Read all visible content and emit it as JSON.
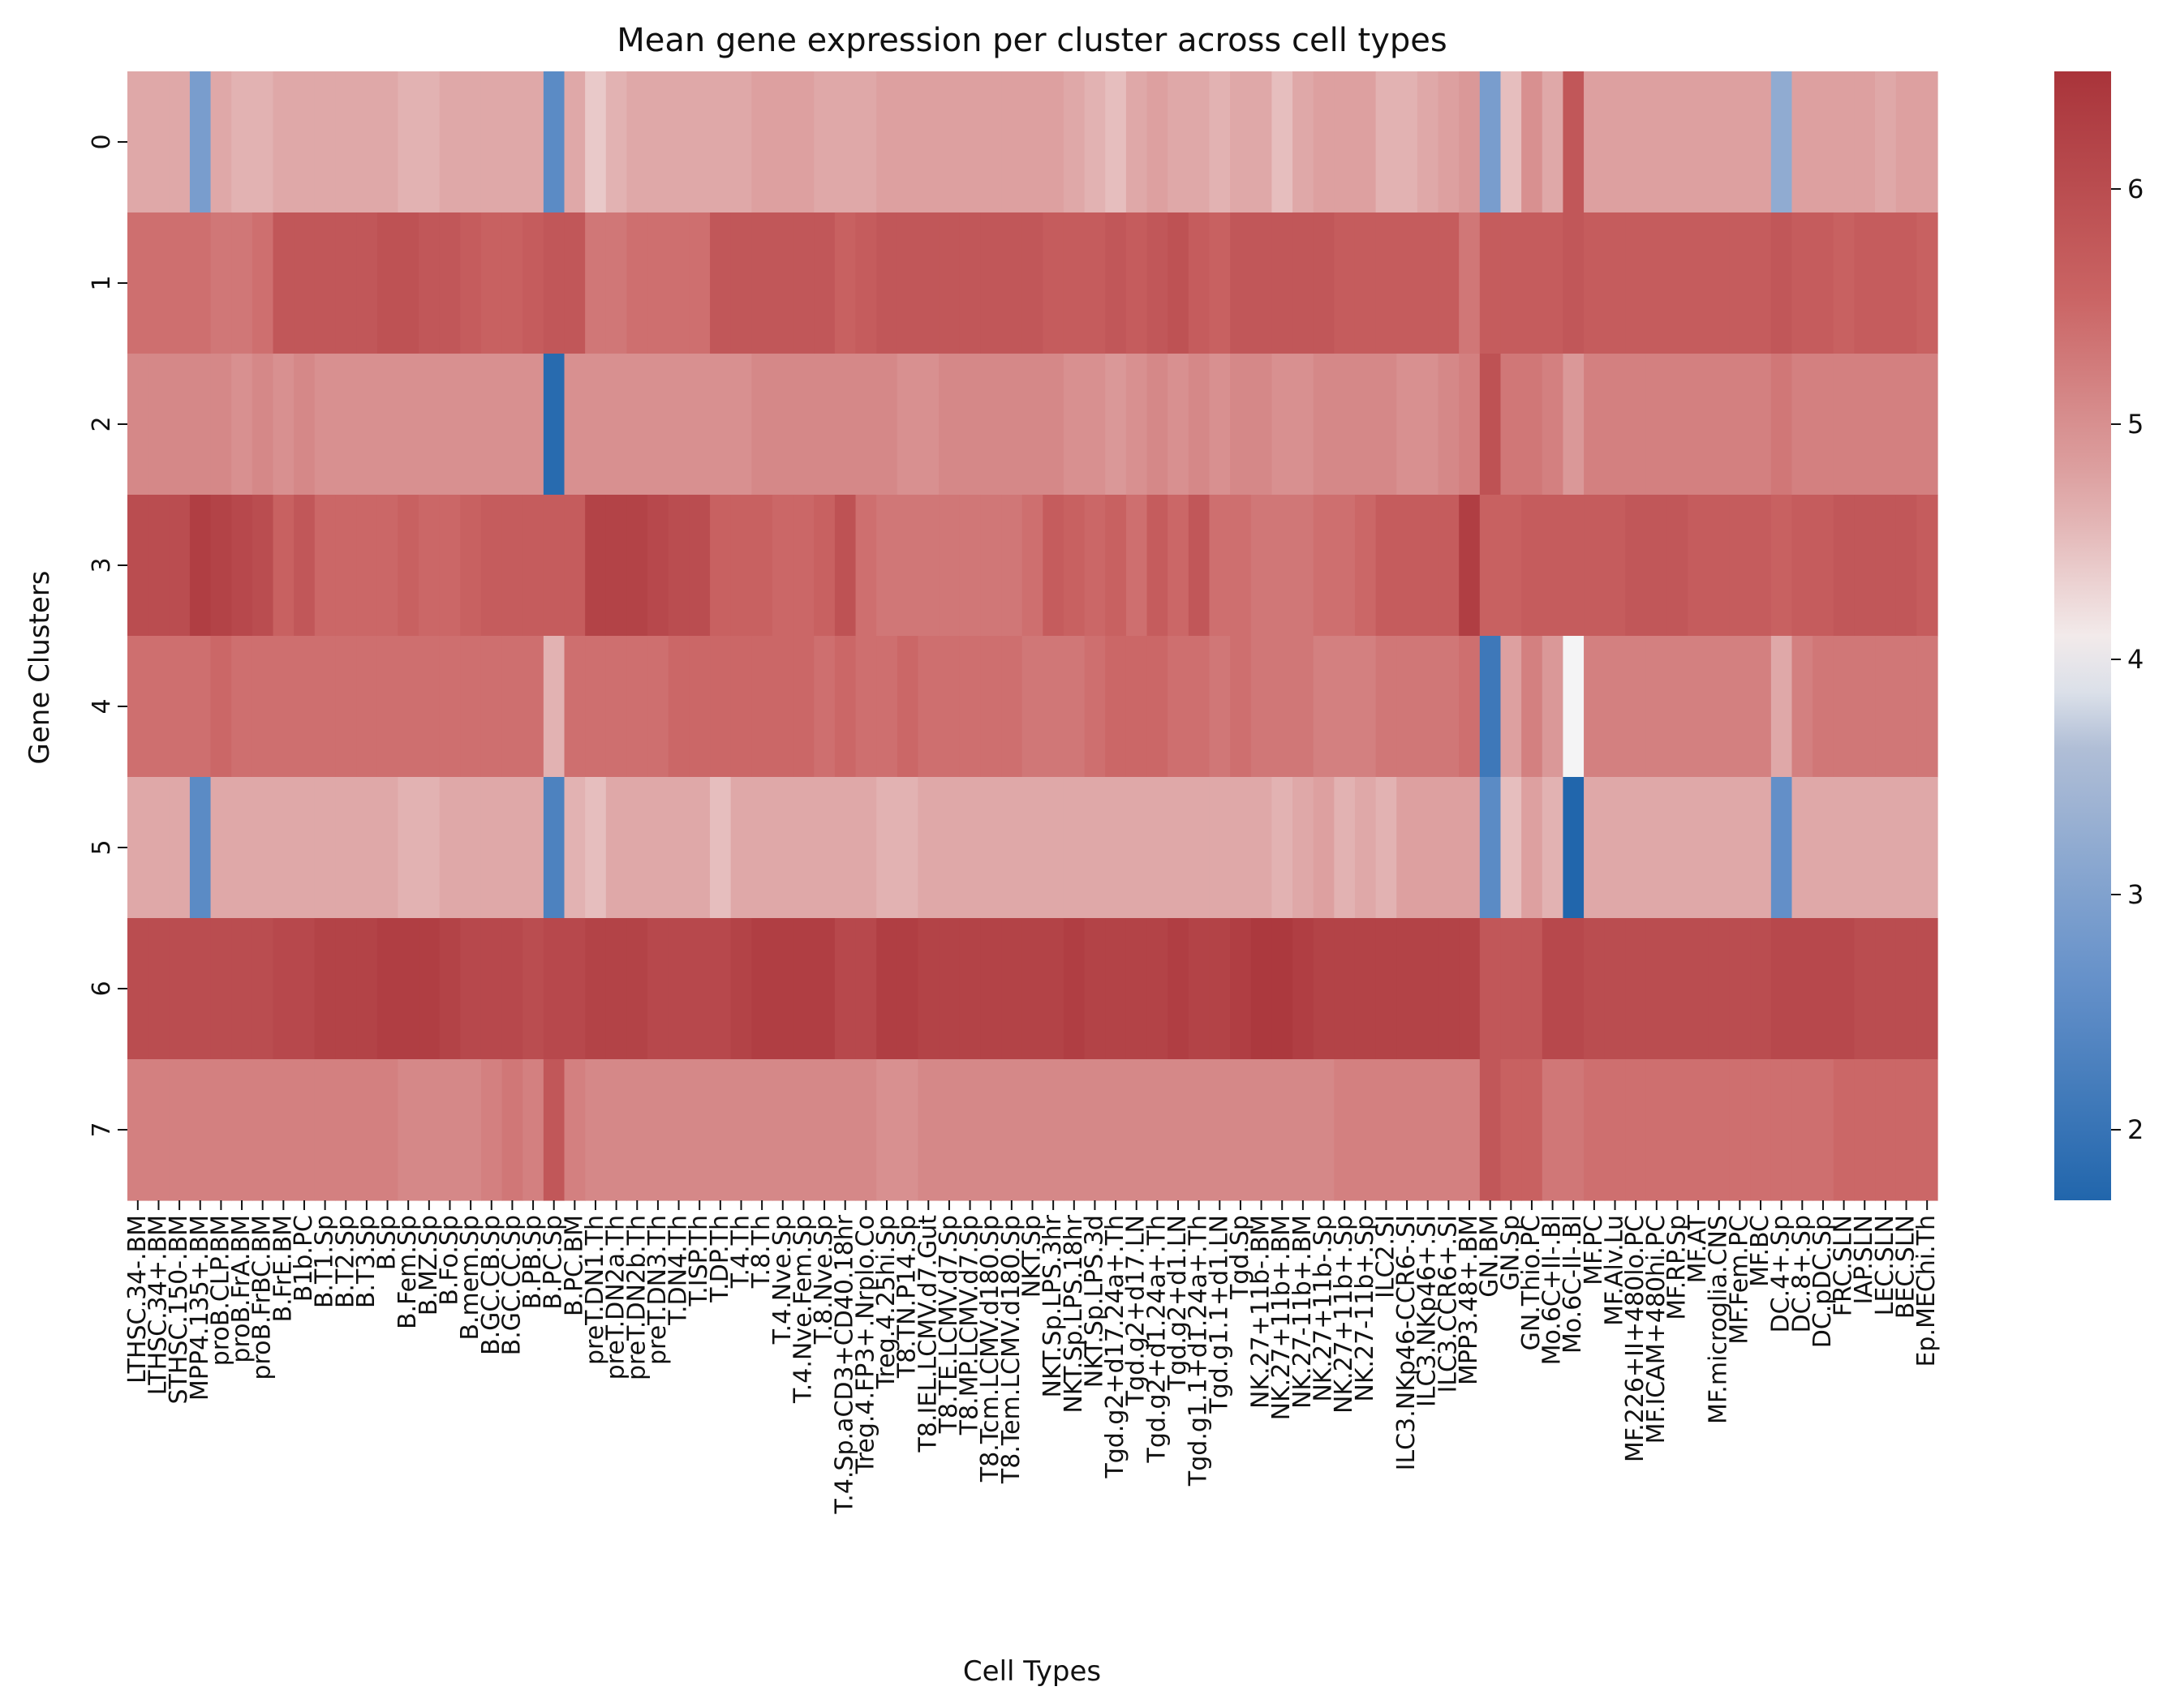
{
  "chart_data": {
    "type": "heatmap",
    "title": "Mean gene expression per cluster across cell types",
    "xlabel": "Cell Types",
    "ylabel": "Gene Clusters",
    "colormap": "vlag",
    "colorbar": {
      "range": [
        1.7,
        6.5
      ],
      "ticks": [
        2,
        3,
        4,
        5,
        6
      ]
    },
    "rows": [
      "0",
      "1",
      "2",
      "3",
      "4",
      "5",
      "6",
      "7"
    ],
    "columns": [
      "LTHSC.34-.BM",
      "LTHSC.34+.BM",
      "STHSC.150-.BM",
      "MPP4.135+.BM",
      "proB.CLP.BM",
      "proB.FrA.BM",
      "proB.FrBC.BM",
      "B.FrE.BM",
      "B1b.PC",
      "B.T1.Sp",
      "B.T2.Sp",
      "B.T3.Sp",
      "B.Sp",
      "B.Fem.Sp",
      "B.MZ.Sp",
      "B.Fo.Sp",
      "B.mem.Sp",
      "B.GC.CB.Sp",
      "B.GC.CC.Sp",
      "B.PB.Sp",
      "B.PC.Sp",
      "B.PC.BM",
      "preT.DN1.Th",
      "preT.DN2a.Th",
      "preT.DN2b.Th",
      "preT.DN3.Th",
      "T.DN4.Th",
      "T.ISP.Th",
      "T.DP.Th",
      "T.4.Th",
      "T.8.Th",
      "T.4.Nve.Sp",
      "T.4.Nve.Fem.Sp",
      "T.8.Nve.Sp",
      "T.4.Sp.aCD3+CD40.18hr",
      "Treg.4.FP3+.Nrplo.Co",
      "Treg.4.25hi.Sp",
      "T8.TN.P14.Sp",
      "T8.IEL.LCMV.d7.Gut",
      "T8.TE.LCMV.d7.Sp",
      "T8.MP.LCMV.d7.Sp",
      "T8.Tcm.LCMV.d180.Sp",
      "T8.Tem.LCMV.d180.Sp",
      "NKT.Sp",
      "NKT.Sp.LPS.3hr",
      "NKT.Sp.LPS.18hr",
      "NKT.Sp.LPS.3d",
      "Tgd.g2+d17.24a+.Th",
      "Tgd.g2+d17.LN",
      "Tgd.g2+d1.24a+.Th",
      "Tgd.g2+d1.LN",
      "Tgd.g1.1+d1.24a+.Th",
      "Tgd.g1.1+d1.LN",
      "Tgd.Sp",
      "NK.27+11b-.BM",
      "NK.27+11b+.BM",
      "NK.27-11b+.BM",
      "NK.27+11b-.Sp",
      "NK.27+11b+.Sp",
      "NK.27-11b+.Sp",
      "ILC2.SI",
      "ILC3.NKp46-CCR6-.SI",
      "ILC3.NKp46+.SI",
      "ILC3.CCR6+.SI",
      "MPP3.48+.BM",
      "GN.BM",
      "GN.Sp",
      "GN.Thio.PC",
      "Mo.6C+II-.Bl",
      "Mo.6C-II-.Bl",
      "MF.PC",
      "MF.Alv.Lu",
      "MF.226+II+480lo.PC",
      "MF.ICAM+480hi.PC",
      "MF.RP.Sp",
      "MF.AT",
      "MF.microglia.CNS",
      "MF.Fem.PC",
      "MF.BC",
      "DC.4+.Sp",
      "DC.8+.Sp",
      "DC.pDC.Sp",
      "FRC.SLN",
      "IAP.SLN",
      "LEC.SLN",
      "BEC.SLN",
      "Ep.MEChi.Th"
    ],
    "values": [
      [
        4.7,
        4.7,
        4.7,
        2.9,
        4.7,
        4.6,
        4.6,
        4.7,
        4.7,
        4.7,
        4.7,
        4.7,
        4.7,
        4.6,
        4.6,
        4.7,
        4.7,
        4.7,
        4.7,
        4.7,
        2.5,
        4.7,
        4.4,
        4.6,
        4.7,
        4.7,
        4.7,
        4.7,
        4.7,
        4.7,
        4.8,
        4.8,
        4.8,
        4.7,
        4.7,
        4.7,
        4.8,
        4.8,
        4.8,
        4.8,
        4.8,
        4.8,
        4.8,
        4.8,
        4.8,
        4.7,
        4.6,
        4.5,
        4.7,
        4.8,
        4.7,
        4.7,
        4.6,
        4.7,
        4.7,
        4.5,
        4.7,
        4.8,
        4.8,
        4.8,
        4.6,
        4.6,
        4.7,
        4.8,
        4.9,
        2.9,
        4.5,
        5.0,
        4.7,
        5.8,
        4.8,
        4.8,
        4.8,
        4.8,
        4.8,
        4.8,
        4.8,
        4.8,
        4.8,
        3.2,
        4.8,
        4.8,
        4.8,
        4.8,
        4.7,
        4.8,
        4.8
      ],
      [
        5.4,
        5.4,
        5.4,
        5.4,
        5.3,
        5.3,
        5.4,
        5.8,
        5.8,
        5.8,
        5.8,
        5.8,
        5.9,
        5.9,
        5.8,
        5.8,
        5.7,
        5.6,
        5.6,
        5.7,
        5.8,
        5.8,
        5.3,
        5.3,
        5.4,
        5.4,
        5.4,
        5.4,
        5.8,
        5.8,
        5.8,
        5.8,
        5.8,
        5.8,
        5.6,
        5.7,
        5.8,
        5.8,
        5.8,
        5.8,
        5.8,
        5.8,
        5.8,
        5.8,
        5.7,
        5.7,
        5.7,
        5.8,
        5.7,
        5.8,
        5.9,
        5.7,
        5.6,
        5.8,
        5.8,
        5.8,
        5.8,
        5.8,
        5.7,
        5.7,
        5.7,
        5.7,
        5.7,
        5.7,
        5.3,
        5.7,
        5.7,
        5.7,
        5.7,
        5.8,
        5.7,
        5.7,
        5.7,
        5.7,
        5.7,
        5.7,
        5.7,
        5.7,
        5.7,
        5.8,
        5.7,
        5.7,
        5.6,
        5.7,
        5.7,
        5.7,
        5.6
      ],
      [
        5.1,
        5.1,
        5.1,
        5.1,
        5.1,
        5.0,
        5.1,
        5.0,
        5.1,
        5.0,
        5.0,
        5.0,
        5.0,
        5.0,
        5.0,
        5.0,
        5.0,
        5.0,
        5.0,
        5.0,
        1.8,
        5.0,
        5.0,
        5.0,
        5.0,
        5.0,
        5.0,
        5.0,
        5.0,
        5.0,
        5.1,
        5.1,
        5.1,
        5.1,
        5.1,
        5.1,
        5.1,
        5.0,
        5.0,
        5.1,
        5.1,
        5.1,
        5.1,
        5.1,
        5.1,
        5.0,
        5.0,
        4.9,
        5.0,
        5.1,
        5.0,
        5.1,
        5.0,
        5.1,
        5.1,
        5.0,
        5.0,
        5.1,
        5.1,
        5.1,
        5.1,
        5.0,
        5.0,
        5.1,
        5.2,
        5.9,
        5.3,
        5.3,
        5.2,
        4.9,
        5.2,
        5.2,
        5.2,
        5.2,
        5.2,
        5.2,
        5.2,
        5.2,
        5.2,
        5.3,
        5.2,
        5.2,
        5.2,
        5.2,
        5.2,
        5.2,
        5.2
      ],
      [
        6.0,
        6.0,
        6.0,
        6.3,
        6.2,
        6.1,
        6.0,
        5.6,
        5.8,
        5.5,
        5.5,
        5.5,
        5.5,
        5.6,
        5.5,
        5.5,
        5.6,
        5.7,
        5.7,
        5.7,
        5.7,
        5.7,
        6.2,
        6.2,
        6.2,
        6.1,
        6.0,
        6.0,
        5.6,
        5.6,
        5.6,
        5.5,
        5.5,
        5.6,
        5.9,
        5.4,
        5.3,
        5.3,
        5.3,
        5.3,
        5.3,
        5.3,
        5.3,
        5.4,
        5.7,
        5.6,
        5.5,
        5.6,
        5.4,
        5.7,
        5.5,
        5.8,
        5.4,
        5.4,
        5.3,
        5.3,
        5.3,
        5.4,
        5.4,
        5.5,
        5.7,
        5.7,
        5.7,
        5.7,
        6.3,
        5.6,
        5.6,
        5.7,
        5.7,
        5.7,
        5.7,
        5.7,
        5.8,
        5.8,
        5.8,
        5.7,
        5.7,
        5.7,
        5.7,
        5.6,
        5.7,
        5.7,
        5.8,
        5.8,
        5.8,
        5.8,
        5.7
      ],
      [
        5.4,
        5.4,
        5.4,
        5.4,
        5.5,
        5.4,
        5.4,
        5.4,
        5.4,
        5.4,
        5.4,
        5.4,
        5.4,
        5.4,
        5.4,
        5.4,
        5.4,
        5.4,
        5.4,
        5.4,
        4.6,
        5.4,
        5.4,
        5.4,
        5.4,
        5.4,
        5.5,
        5.5,
        5.5,
        5.5,
        5.5,
        5.5,
        5.5,
        5.4,
        5.5,
        5.4,
        5.4,
        5.5,
        5.4,
        5.4,
        5.4,
        5.4,
        5.4,
        5.3,
        5.3,
        5.3,
        5.4,
        5.5,
        5.5,
        5.5,
        5.4,
        5.4,
        5.3,
        5.4,
        5.3,
        5.3,
        5.3,
        5.2,
        5.2,
        5.2,
        5.3,
        5.3,
        5.3,
        5.3,
        5.4,
        2.1,
        4.8,
        5.2,
        4.9,
        4.0,
        5.2,
        5.2,
        5.2,
        5.2,
        5.2,
        5.2,
        5.2,
        5.2,
        5.2,
        4.7,
        5.2,
        5.3,
        5.3,
        5.3,
        5.3,
        5.3,
        5.3
      ],
      [
        4.7,
        4.7,
        4.7,
        2.5,
        4.7,
        4.7,
        4.7,
        4.7,
        4.7,
        4.7,
        4.7,
        4.7,
        4.7,
        4.6,
        4.6,
        4.7,
        4.7,
        4.7,
        4.7,
        4.7,
        2.3,
        4.6,
        4.5,
        4.7,
        4.7,
        4.7,
        4.7,
        4.7,
        4.5,
        4.7,
        4.7,
        4.7,
        4.7,
        4.7,
        4.7,
        4.7,
        4.6,
        4.6,
        4.7,
        4.7,
        4.7,
        4.7,
        4.7,
        4.7,
        4.7,
        4.7,
        4.7,
        4.7,
        4.7,
        4.7,
        4.7,
        4.7,
        4.7,
        4.7,
        4.7,
        4.6,
        4.7,
        4.8,
        4.6,
        4.7,
        4.6,
        4.8,
        4.8,
        4.8,
        4.8,
        2.5,
        4.5,
        4.8,
        4.6,
        1.7,
        4.7,
        4.7,
        4.7,
        4.7,
        4.7,
        4.7,
        4.7,
        4.7,
        4.7,
        2.6,
        4.7,
        4.7,
        4.7,
        4.7,
        4.7,
        4.7,
        4.7
      ],
      [
        6.0,
        6.0,
        6.0,
        6.0,
        6.0,
        6.0,
        6.0,
        6.1,
        6.1,
        6.2,
        6.2,
        6.2,
        6.3,
        6.3,
        6.3,
        6.2,
        6.1,
        6.1,
        6.1,
        6.0,
        6.1,
        6.1,
        6.2,
        6.2,
        6.2,
        6.1,
        6.1,
        6.1,
        6.1,
        6.2,
        6.3,
        6.3,
        6.3,
        6.3,
        6.1,
        6.1,
        6.3,
        6.3,
        6.2,
        6.2,
        6.2,
        6.2,
        6.2,
        6.2,
        6.2,
        6.3,
        6.2,
        6.2,
        6.2,
        6.2,
        6.3,
        6.2,
        6.2,
        6.3,
        6.4,
        6.4,
        6.3,
        6.2,
        6.2,
        6.2,
        6.2,
        6.2,
        6.2,
        6.2,
        6.2,
        5.8,
        5.8,
        5.8,
        6.1,
        6.1,
        6.0,
        6.0,
        6.0,
        6.0,
        6.0,
        6.0,
        6.0,
        6.0,
        6.0,
        6.1,
        6.1,
        6.1,
        6.1,
        6.0,
        6.0,
        6.0,
        6.0
      ],
      [
        5.2,
        5.2,
        5.2,
        5.2,
        5.2,
        5.2,
        5.2,
        5.2,
        5.2,
        5.2,
        5.2,
        5.2,
        5.2,
        5.1,
        5.1,
        5.1,
        5.1,
        5.2,
        5.3,
        5.2,
        5.8,
        5.2,
        5.1,
        5.1,
        5.1,
        5.1,
        5.1,
        5.1,
        5.1,
        5.1,
        5.1,
        5.1,
        5.1,
        5.1,
        5.1,
        5.1,
        5.0,
        5.0,
        5.1,
        5.1,
        5.1,
        5.1,
        5.1,
        5.1,
        5.1,
        5.1,
        5.1,
        5.1,
        5.1,
        5.1,
        5.1,
        5.1,
        5.1,
        5.1,
        5.1,
        5.1,
        5.1,
        5.1,
        5.2,
        5.2,
        5.2,
        5.2,
        5.2,
        5.2,
        5.2,
        5.8,
        5.6,
        5.6,
        5.3,
        5.3,
        5.4,
        5.4,
        5.4,
        5.4,
        5.4,
        5.4,
        5.4,
        5.4,
        5.4,
        5.4,
        5.4,
        5.4,
        5.5,
        5.5,
        5.5,
        5.5,
        5.5
      ]
    ]
  }
}
